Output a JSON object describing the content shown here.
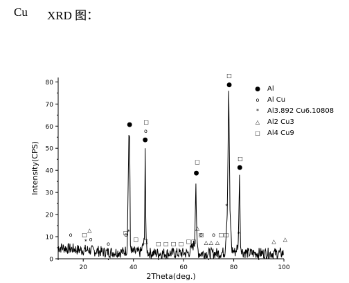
{
  "heading": {
    "prefix": "Cu",
    "main": "XRD 图："
  },
  "chart_data": {
    "type": "line",
    "xlabel": "2Theta(deg.)",
    "ylabel": "Intensity(CPS)",
    "xlim": [
      10,
      100
    ],
    "ylim": [
      0,
      82
    ],
    "x_ticks": [
      20,
      40,
      60,
      80,
      100
    ],
    "y_ticks": [
      0,
      10,
      20,
      30,
      40,
      50,
      60,
      70,
      80
    ],
    "series": [
      {
        "type": "line",
        "color": "#000000",
        "x": [
          10,
          12,
          14,
          16,
          18,
          20,
          22,
          24,
          26,
          28,
          30,
          32,
          34,
          36,
          37.5,
          38.2,
          38.5,
          38.8,
          39.5,
          41,
          43,
          44.4,
          44.7,
          45.0,
          45.6,
          47,
          50,
          54,
          58,
          62,
          64.4,
          64.9,
          65.3,
          66,
          70,
          74,
          76.5,
          77.4,
          78.0,
          78.5,
          79.2,
          80.5,
          81.8,
          82.3,
          82.7,
          83.5,
          86,
          90,
          94,
          98,
          100
        ],
        "y": [
          5,
          5,
          4.5,
          4.5,
          4,
          4,
          4,
          3.5,
          3.5,
          3,
          3,
          3,
          3,
          3,
          4,
          56,
          55,
          6,
          3,
          3,
          3,
          8,
          50,
          8,
          3,
          2.5,
          2.5,
          2.5,
          2.5,
          2.5,
          7,
          34,
          7,
          2.5,
          2.5,
          2.5,
          3,
          20,
          76,
          22,
          4,
          3,
          6,
          38,
          6,
          3,
          2.5,
          2.5,
          2.5,
          2.5,
          2.5
        ]
      }
    ],
    "phases": [
      {
        "symbol": "●",
        "name": "Al",
        "peaks": [
          {
            "x": 38.5,
            "y": 60
          },
          {
            "x": 44.7,
            "y": 53
          },
          {
            "x": 65.1,
            "y": 38
          },
          {
            "x": 78.2,
            "y": 78
          },
          {
            "x": 82.4,
            "y": 40.5
          }
        ]
      },
      {
        "symbol": "o",
        "name": "Al Cu",
        "peaks": [
          {
            "x": 15,
            "y": 10
          },
          {
            "x": 23,
            "y": 8
          },
          {
            "x": 30,
            "y": 6
          },
          {
            "x": 37,
            "y": 10
          },
          {
            "x": 44.9,
            "y": 57
          },
          {
            "x": 67,
            "y": 10
          },
          {
            "x": 72,
            "y": 10
          }
        ]
      },
      {
        "symbol": "*",
        "name": "Al3.892 Cu6.10808",
        "peaks": [
          {
            "x": 21,
            "y": 7
          },
          {
            "x": 38.1,
            "y": 11.5
          },
          {
            "x": 77.2,
            "y": 23
          },
          {
            "x": 82.0,
            "y": 10.5
          }
        ]
      },
      {
        "symbol": "△",
        "name": "Al2 Cu3",
        "peaks": [
          {
            "x": 22.5,
            "y": 12
          },
          {
            "x": 65.5,
            "y": 13
          },
          {
            "x": 69,
            "y": 6.5
          },
          {
            "x": 71,
            "y": 6.5
          },
          {
            "x": 73.5,
            "y": 6.5
          },
          {
            "x": 96,
            "y": 7
          },
          {
            "x": 100.5,
            "y": 8
          }
        ]
      },
      {
        "symbol": "□",
        "name": "Al4 Cu9",
        "peaks": [
          {
            "x": 20.5,
            "y": 10
          },
          {
            "x": 37,
            "y": 11
          },
          {
            "x": 45.1,
            "y": 61
          },
          {
            "x": 65.5,
            "y": 43
          },
          {
            "x": 78.2,
            "y": 82
          },
          {
            "x": 82.6,
            "y": 44.5
          },
          {
            "x": 41,
            "y": 8
          },
          {
            "x": 45,
            "y": 7
          },
          {
            "x": 50,
            "y": 6
          },
          {
            "x": 53,
            "y": 6
          },
          {
            "x": 56,
            "y": 6
          },
          {
            "x": 59,
            "y": 6
          },
          {
            "x": 62,
            "y": 7
          },
          {
            "x": 64,
            "y": 7
          },
          {
            "x": 67,
            "y": 10
          },
          {
            "x": 75,
            "y": 10
          },
          {
            "x": 77,
            "y": 10
          }
        ]
      }
    ],
    "legend_position": "top-right"
  }
}
